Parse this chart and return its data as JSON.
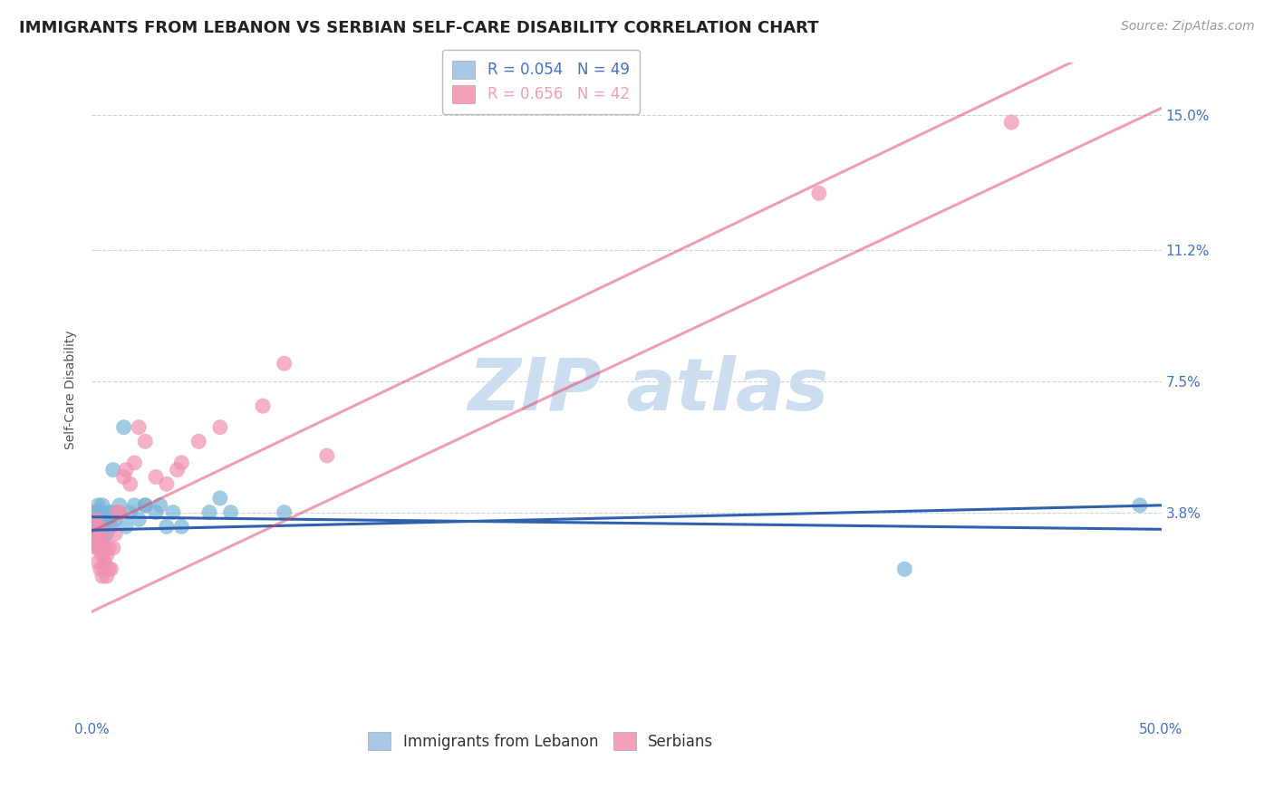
{
  "title": "IMMIGRANTS FROM LEBANON VS SERBIAN SELF-CARE DISABILITY CORRELATION CHART",
  "source": "Source: ZipAtlas.com",
  "ylabel": "Self-Care Disability",
  "xlim": [
    0.0,
    0.5
  ],
  "ylim": [
    -0.02,
    0.165
  ],
  "yticks": [
    0.038,
    0.075,
    0.112,
    0.15
  ],
  "ytick_labels": [
    "3.8%",
    "7.5%",
    "11.2%",
    "15.0%"
  ],
  "xticks": [
    0.0,
    0.1,
    0.2,
    0.3,
    0.4,
    0.5
  ],
  "xtick_labels": [
    "0.0%",
    "",
    "",
    "",
    "",
    "50.0%"
  ],
  "legend_entries": [
    {
      "label": "Immigrants from Lebanon",
      "R": "0.054",
      "N": "49",
      "color": "#a8c8e8"
    },
    {
      "label": "Serbians",
      "R": "0.656",
      "N": "42",
      "color": "#f4a0b8"
    }
  ],
  "series": [
    {
      "name": "Immigrants from Lebanon",
      "color": "#7ab4d8",
      "line_color": "#3060b0",
      "x": [
        0.001,
        0.001,
        0.001,
        0.002,
        0.002,
        0.002,
        0.002,
        0.003,
        0.003,
        0.003,
        0.003,
        0.003,
        0.004,
        0.004,
        0.004,
        0.005,
        0.005,
        0.005,
        0.005,
        0.006,
        0.006,
        0.007,
        0.007,
        0.008,
        0.008,
        0.009,
        0.009,
        0.01,
        0.011,
        0.012,
        0.013,
        0.015,
        0.016,
        0.018,
        0.02,
        0.022,
        0.025,
        0.025,
        0.03,
        0.032,
        0.035,
        0.038,
        0.042,
        0.055,
        0.06,
        0.065,
        0.09,
        0.38,
        0.49
      ],
      "y": [
        0.03,
        0.034,
        0.038,
        0.03,
        0.034,
        0.036,
        0.038,
        0.028,
        0.032,
        0.034,
        0.036,
        0.04,
        0.03,
        0.034,
        0.038,
        0.03,
        0.034,
        0.036,
        0.04,
        0.032,
        0.036,
        0.032,
        0.036,
        0.034,
        0.038,
        0.034,
        0.038,
        0.05,
        0.036,
        0.038,
        0.04,
        0.062,
        0.034,
        0.038,
        0.04,
        0.036,
        0.04,
        0.04,
        0.038,
        0.04,
        0.034,
        0.038,
        0.034,
        0.038,
        0.042,
        0.038,
        0.038,
        0.022,
        0.04
      ]
    },
    {
      "name": "Serbians",
      "color": "#f090b0",
      "line_color": "#e0406080",
      "x": [
        0.001,
        0.001,
        0.002,
        0.002,
        0.002,
        0.003,
        0.003,
        0.003,
        0.004,
        0.004,
        0.004,
        0.005,
        0.005,
        0.005,
        0.006,
        0.006,
        0.007,
        0.007,
        0.008,
        0.008,
        0.009,
        0.01,
        0.011,
        0.012,
        0.013,
        0.015,
        0.016,
        0.018,
        0.02,
        0.022,
        0.025,
        0.03,
        0.035,
        0.04,
        0.042,
        0.05,
        0.06,
        0.08,
        0.09,
        0.11,
        0.34,
        0.43
      ],
      "y": [
        0.03,
        0.034,
        0.028,
        0.032,
        0.036,
        0.024,
        0.03,
        0.034,
        0.022,
        0.028,
        0.032,
        0.02,
        0.026,
        0.03,
        0.024,
        0.028,
        0.02,
        0.026,
        0.022,
        0.028,
        0.022,
        0.028,
        0.032,
        0.038,
        0.038,
        0.048,
        0.05,
        0.046,
        0.052,
        0.062,
        0.058,
        0.048,
        0.046,
        0.05,
        0.052,
        0.058,
        0.062,
        0.068,
        0.08,
        0.054,
        0.128,
        0.148
      ]
    }
  ],
  "watermark_text": "ZIP atlas",
  "watermark_color": "#ccddf0",
  "background_color": "#ffffff",
  "grid_color": "#c8d4e8",
  "title_fontsize": 13,
  "axis_label_fontsize": 10,
  "tick_fontsize": 11,
  "legend_fontsize": 12,
  "source_fontsize": 10
}
